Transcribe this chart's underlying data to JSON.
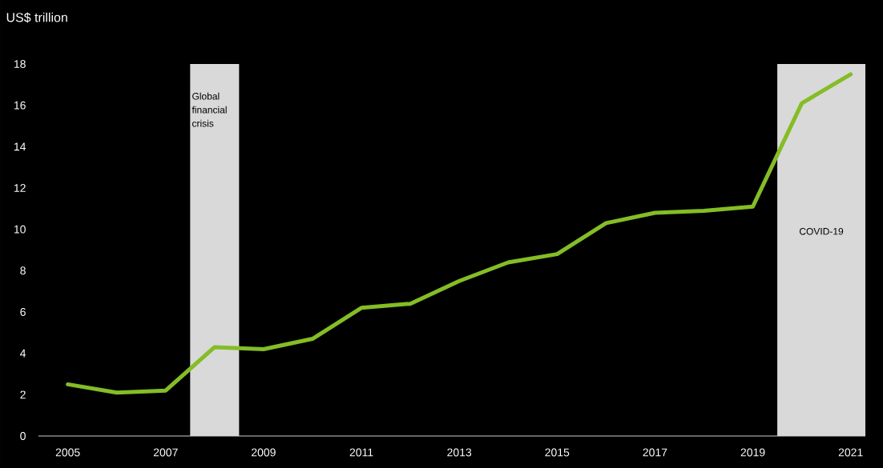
{
  "chart_data": {
    "type": "line",
    "ylabel": "US$ trillion",
    "x": [
      2005,
      2006,
      2007,
      2008,
      2009,
      2010,
      2011,
      2012,
      2013,
      2014,
      2015,
      2016,
      2017,
      2018,
      2019,
      2020,
      2021
    ],
    "series": [
      {
        "color": "#84bd26",
        "values": [
          2.5,
          2.1,
          2.2,
          4.3,
          4.2,
          4.7,
          6.2,
          6.4,
          7.5,
          8.4,
          8.8,
          10.3,
          10.8,
          10.9,
          11.1,
          16.1,
          17.5
        ]
      }
    ],
    "xlim": [
      2004.4,
      2021.3
    ],
    "xticks": [
      2005,
      2007,
      2009,
      2011,
      2013,
      2015,
      2017,
      2019,
      2021
    ],
    "ylim": [
      0,
      18
    ],
    "yticks": [
      0,
      2,
      4,
      6,
      8,
      10,
      12,
      14,
      16,
      18
    ],
    "bands": [
      {
        "axis": "x",
        "from": 2007.5,
        "to": 2008.5,
        "label": "Global financial crisis",
        "color": "#d9d9d9"
      },
      {
        "axis": "x",
        "from": 2019.5,
        "to": 2021.3,
        "label": "COVID-19",
        "color": "#d9d9d9"
      }
    ],
    "grid": false,
    "marker": "none",
    "line_style": "solid"
  }
}
